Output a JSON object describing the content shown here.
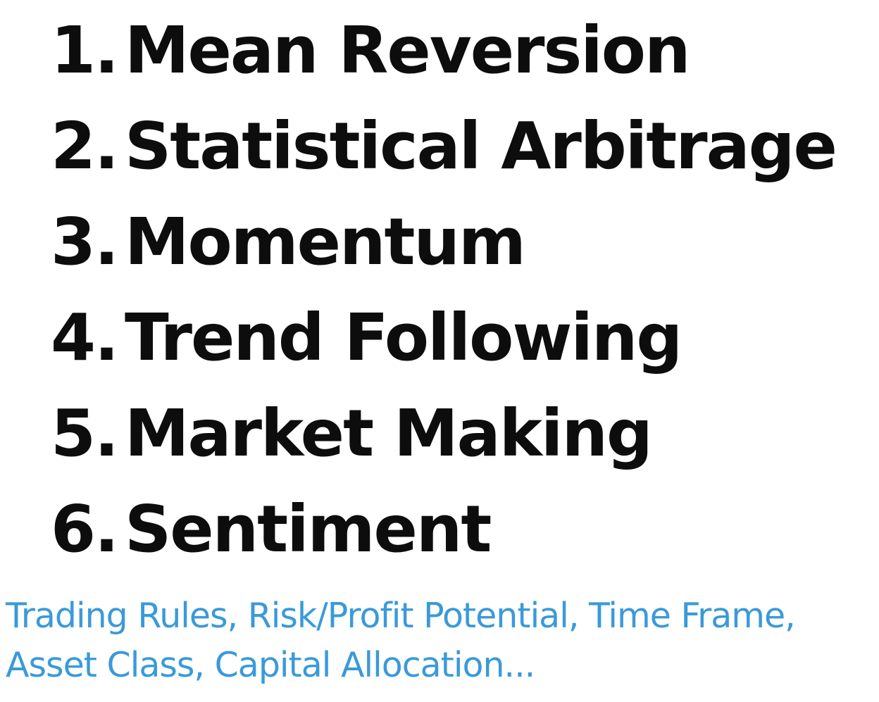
{
  "strategies": [
    {
      "number": "1.",
      "name": "Mean Reversion"
    },
    {
      "number": "2.",
      "name": "Statistical Arbitrage"
    },
    {
      "number": "3.",
      "name": "Momentum"
    },
    {
      "number": "4.",
      "name": "Trend Following"
    },
    {
      "number": "5.",
      "name": "Market Making"
    },
    {
      "number": "6.",
      "name": "Sentiment"
    }
  ],
  "footnote": {
    "line1": "Trading Rules, Risk/Profit Potential, Time Frame,",
    "line2": "Asset Class, Capital Allocation..."
  },
  "colors": {
    "text": "#0d0d0d",
    "footnote": "#3a9ad9",
    "background": "#ffffff"
  }
}
